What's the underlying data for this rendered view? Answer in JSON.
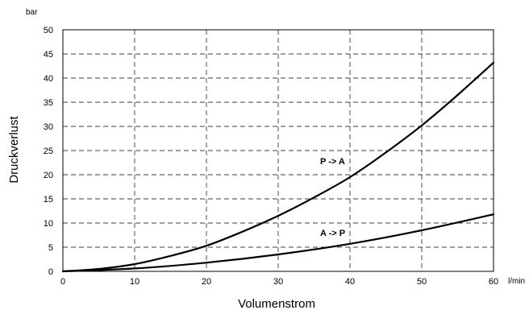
{
  "chart_data": {
    "type": "line",
    "title": "",
    "xlabel": "Volumenstrom",
    "ylabel": "Druckverlust",
    "x_unit": "l/min",
    "y_unit": "bar",
    "xlim": [
      0,
      60
    ],
    "ylim": [
      0,
      50
    ],
    "x_ticks": [
      "0",
      "10",
      "20",
      "30",
      "40",
      "50",
      "60"
    ],
    "y_ticks": [
      "0",
      "5",
      "10",
      "15",
      "20",
      "25",
      "30",
      "35",
      "40",
      "45",
      "50"
    ],
    "grid": true,
    "legend": "none",
    "series": [
      {
        "name": "P -> A",
        "color": "#000000",
        "x": [
          0,
          5,
          10,
          15,
          20,
          25,
          30,
          35,
          40,
          45,
          50,
          55,
          60
        ],
        "y": [
          0,
          0.5,
          1.5,
          3.2,
          5.3,
          8.2,
          11.5,
          15.3,
          19.5,
          24.6,
          30.2,
          36.5,
          43.2
        ]
      },
      {
        "name": "A -> P",
        "color": "#000000",
        "x": [
          0,
          10,
          20,
          30,
          40,
          50,
          60
        ],
        "y": [
          0,
          0.6,
          1.8,
          3.5,
          5.7,
          8.5,
          11.8
        ]
      }
    ]
  }
}
